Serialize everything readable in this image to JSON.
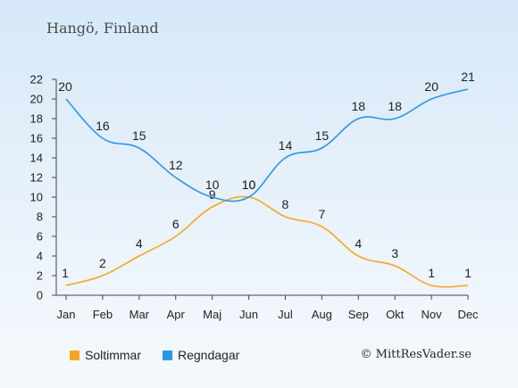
{
  "chart_data": {
    "type": "line",
    "title": "Hangö, Finland",
    "categories": [
      "Jan",
      "Feb",
      "Mar",
      "Apr",
      "Maj",
      "Jun",
      "Jul",
      "Aug",
      "Sep",
      "Okt",
      "Nov",
      "Dec"
    ],
    "series": [
      {
        "name": "Soltimmar",
        "color": "#f5a623",
        "values": [
          1,
          2,
          4,
          6,
          9,
          10,
          8,
          7,
          4,
          3,
          1,
          1
        ]
      },
      {
        "name": "Regndagar",
        "color": "#2b96e8",
        "values": [
          20,
          16,
          15,
          12,
          10,
          10,
          14,
          15,
          18,
          18,
          20,
          21
        ]
      }
    ],
    "ylim": [
      0,
      22
    ],
    "yticks": [
      0,
      2,
      4,
      6,
      8,
      10,
      12,
      14,
      16,
      18,
      20,
      22
    ],
    "grid": false,
    "legend_position": "bottom"
  },
  "copyright": "© MittResVader.se"
}
